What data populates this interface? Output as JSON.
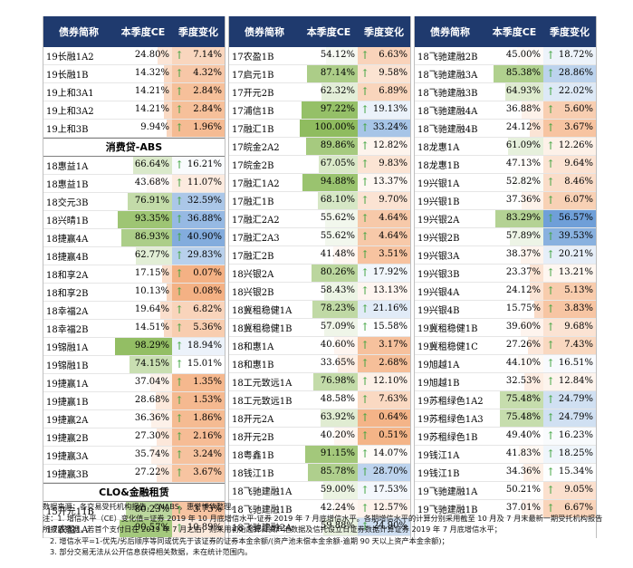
{
  "headers": {
    "name": "债券简称",
    "ce": "本季度CE",
    "change": "季度变化"
  },
  "columns": [
    {
      "rows": [
        {
          "kind": "data",
          "name": "19长融1A2",
          "ce": "24.80%",
          "change": "7.14%"
        },
        {
          "kind": "data",
          "name": "19长融1B",
          "ce": "14.32%",
          "change": "4.32%"
        },
        {
          "kind": "data",
          "name": "19上和3A1",
          "ce": "14.21%",
          "change": "2.84%"
        },
        {
          "kind": "data",
          "name": "19上和3A2",
          "ce": "14.21%",
          "change": "2.84%"
        },
        {
          "kind": "data",
          "name": "19上和3B",
          "ce": "9.94%",
          "change": "1.96%"
        },
        {
          "kind": "section",
          "name": "消费贷-ABS"
        },
        {
          "kind": "data",
          "name": "18惠益1A",
          "ce": "66.64%",
          "change": "16.21%"
        },
        {
          "kind": "data",
          "name": "18惠益1B",
          "ce": "43.68%",
          "change": "11.07%"
        },
        {
          "kind": "data",
          "name": "18交元3B",
          "ce": "76.91%",
          "change": "32.59%"
        },
        {
          "kind": "data",
          "name": "18兴晴1B",
          "ce": "93.35%",
          "change": "36.88%"
        },
        {
          "kind": "data",
          "name": "18捷赢4A",
          "ce": "86.93%",
          "change": "40.90%"
        },
        {
          "kind": "data",
          "name": "18捷赢4B",
          "ce": "62.77%",
          "change": "29.83%"
        },
        {
          "kind": "data",
          "name": "18和享2A",
          "ce": "17.15%",
          "change": "0.07%"
        },
        {
          "kind": "data",
          "name": "18和享2B",
          "ce": "10.13%",
          "change": "0.08%"
        },
        {
          "kind": "data",
          "name": "18幸福2A",
          "ce": "19.64%",
          "change": "6.82%"
        },
        {
          "kind": "data",
          "name": "18幸福2B",
          "ce": "14.51%",
          "change": "5.36%"
        },
        {
          "kind": "data",
          "name": "19锦融1A",
          "ce": "98.29%",
          "change": "18.94%"
        },
        {
          "kind": "data",
          "name": "19锦融1B",
          "ce": "74.15%",
          "change": "15.01%"
        },
        {
          "kind": "data",
          "name": "19捷赢1A",
          "ce": "37.04%",
          "change": "1.35%"
        },
        {
          "kind": "data",
          "name": "19捷赢1B",
          "ce": "28.68%",
          "change": "1.53%"
        },
        {
          "kind": "data",
          "name": "19捷赢2A",
          "ce": "36.36%",
          "change": "1.86%"
        },
        {
          "kind": "data",
          "name": "19捷赢2B",
          "ce": "27.30%",
          "change": "2.16%"
        },
        {
          "kind": "data",
          "name": "19捷赢3A",
          "ce": "35.74%",
          "change": "3.24%"
        },
        {
          "kind": "data",
          "name": "19捷赢3B",
          "ce": "27.22%",
          "change": "3.67%"
        },
        {
          "kind": "section",
          "name": "CLO&金融租赁"
        },
        {
          "kind": "data",
          "name": "15开元11B",
          "ce": "80.23%",
          "change": "3.73%"
        },
        {
          "kind": "data",
          "name": "17农盈1A",
          "ce": "90.57%",
          "change": "10.89%"
        }
      ]
    },
    {
      "rows": [
        {
          "kind": "data",
          "name": "17农盈1B",
          "ce": "54.12%",
          "change": "6.63%"
        },
        {
          "kind": "data",
          "name": "17启元1B",
          "ce": "87.14%",
          "change": "9.58%"
        },
        {
          "kind": "data",
          "name": "17开元2B",
          "ce": "62.32%",
          "change": "6.89%"
        },
        {
          "kind": "data",
          "name": "17浦信1B",
          "ce": "97.22%",
          "change": "19.13%"
        },
        {
          "kind": "data",
          "name": "17融汇1B",
          "ce": "100.00%",
          "change": "33.24%"
        },
        {
          "kind": "data",
          "name": "17皖金2A2",
          "ce": "89.86%",
          "change": "12.82%"
        },
        {
          "kind": "data",
          "name": "17皖金2B",
          "ce": "67.05%",
          "change": "9.83%"
        },
        {
          "kind": "data",
          "name": "17融汇1A2",
          "ce": "94.88%",
          "change": "13.37%"
        },
        {
          "kind": "data",
          "name": "17融汇1B",
          "ce": "68.10%",
          "change": "9.70%"
        },
        {
          "kind": "data",
          "name": "17融汇2A2",
          "ce": "55.62%",
          "change": "4.64%"
        },
        {
          "kind": "data",
          "name": "17融汇2A3",
          "ce": "55.62%",
          "change": "4.64%"
        },
        {
          "kind": "data",
          "name": "17融汇2B",
          "ce": "41.48%",
          "change": "3.51%"
        },
        {
          "kind": "data",
          "name": "18兴银2A",
          "ce": "80.26%",
          "change": "17.92%"
        },
        {
          "kind": "data",
          "name": "18兴银2B",
          "ce": "58.43%",
          "change": "13.13%"
        },
        {
          "kind": "data",
          "name": "18冀租稳健1A",
          "ce": "78.23%",
          "change": "21.16%"
        },
        {
          "kind": "data",
          "name": "18冀租稳健1B",
          "ce": "57.09%",
          "change": "15.58%"
        },
        {
          "kind": "data",
          "name": "18和惠1A",
          "ce": "40.60%",
          "change": "3.17%"
        },
        {
          "kind": "data",
          "name": "18和惠1B",
          "ce": "33.65%",
          "change": "2.68%"
        },
        {
          "kind": "data",
          "name": "18工元致远1A",
          "ce": "76.98%",
          "change": "12.10%"
        },
        {
          "kind": "data",
          "name": "18工元致远1B",
          "ce": "48.58%",
          "change": "7.63%"
        },
        {
          "kind": "data",
          "name": "18开元2A",
          "ce": "63.92%",
          "change": "0.64%"
        },
        {
          "kind": "data",
          "name": "18开元2B",
          "ce": "40.20%",
          "change": "0.51%"
        },
        {
          "kind": "data",
          "name": "18粤鑫1B",
          "ce": "91.15%",
          "change": "14.07%"
        },
        {
          "kind": "data",
          "name": "18钱江1B",
          "ce": "85.78%",
          "change": "28.70%"
        },
        {
          "kind": "data",
          "name": "18飞驰建融1A",
          "ce": "59.00%",
          "change": "17.53%"
        },
        {
          "kind": "data",
          "name": "18飞驰建融1B",
          "ce": "42.24%",
          "change": "12.57%"
        },
        {
          "kind": "data",
          "name": "18飞驰建融2A",
          "ce": "59.88%",
          "change": "24.90%"
        }
      ]
    },
    {
      "rows": [
        {
          "kind": "data",
          "name": "18飞驰建融2B",
          "ce": "45.00%",
          "change": "18.72%"
        },
        {
          "kind": "data",
          "name": "18飞驰建融3A",
          "ce": "85.38%",
          "change": "28.86%"
        },
        {
          "kind": "data",
          "name": "18飞驰建融3B",
          "ce": "64.93%",
          "change": "22.02%"
        },
        {
          "kind": "data",
          "name": "18飞驰建融4A",
          "ce": "36.88%",
          "change": "5.60%"
        },
        {
          "kind": "data",
          "name": "18飞驰建融4B",
          "ce": "24.12%",
          "change": "3.67%"
        },
        {
          "kind": "data",
          "name": "18龙惠1A",
          "ce": "61.09%",
          "change": "12.26%"
        },
        {
          "kind": "data",
          "name": "18龙惠1B",
          "ce": "47.13%",
          "change": "9.64%"
        },
        {
          "kind": "data",
          "name": "19兴银1A",
          "ce": "52.82%",
          "change": "8.46%"
        },
        {
          "kind": "data",
          "name": "19兴银1B",
          "ce": "37.36%",
          "change": "6.07%"
        },
        {
          "kind": "data",
          "name": "19兴银2A",
          "ce": "83.29%",
          "change": "56.57%"
        },
        {
          "kind": "data",
          "name": "19兴银2B",
          "ce": "57.89%",
          "change": "39.53%"
        },
        {
          "kind": "data",
          "name": "19兴银3A",
          "ce": "38.37%",
          "change": "20.21%"
        },
        {
          "kind": "data",
          "name": "19兴银3B",
          "ce": "23.37%",
          "change": "13.21%"
        },
        {
          "kind": "data",
          "name": "19兴银4A",
          "ce": "24.12%",
          "change": "5.13%"
        },
        {
          "kind": "data",
          "name": "19兴银4B",
          "ce": "15.75%",
          "change": "3.83%"
        },
        {
          "kind": "data",
          "name": "19冀租稳健1B",
          "ce": "39.60%",
          "change": "9.68%"
        },
        {
          "kind": "data",
          "name": "19冀租稳健1C",
          "ce": "27.26%",
          "change": "7.43%"
        },
        {
          "kind": "data",
          "name": "19旭越1A",
          "ce": "44.10%",
          "change": "16.51%"
        },
        {
          "kind": "data",
          "name": "19旭越1B",
          "ce": "32.53%",
          "change": "12.84%"
        },
        {
          "kind": "data",
          "name": "19苏租绿色1A2",
          "ce": "75.48%",
          "change": "24.79%"
        },
        {
          "kind": "data",
          "name": "19苏租绿色1A3",
          "ce": "75.48%",
          "change": "24.79%"
        },
        {
          "kind": "data",
          "name": "19苏租绿色1B",
          "ce": "49.40%",
          "change": "16.23%"
        },
        {
          "kind": "data",
          "name": "19钱江1A",
          "ce": "41.83%",
          "change": "18.25%"
        },
        {
          "kind": "data",
          "name": "19钱江1B",
          "ce": "34.36%",
          "change": "15.34%"
        },
        {
          "kind": "data",
          "name": "19飞驰建融1A",
          "ce": "50.21%",
          "change": "9.05%"
        },
        {
          "kind": "data",
          "name": "19飞驰建融1B",
          "ce": "37.01%",
          "change": "6.67%"
        }
      ]
    }
  ],
  "notes": [
    "数据来源：各交易受托机构报告，CNABS，惠誉博华整理。",
    "注：1. 增信水平（CE）变化值=证券 2019 年 10 月底增信水平-证券 2019 年 7 月底增信水平。各期增信水平的计算分别采用截至 10 月及 7 月末最新一期受托机构报告所披露数据，若首个支付日在 2019 年 7 月之后，则采用初始起算日资产池数据及信托设立日证券数据计算证券 2019 年 7 月底增信水平；",
    "2. 增信水平=1-优先/劣后顺序等同或优先于该证券的证券本金余额/(资产池未偿本金余额-逾期 90 天以上资产本金余额)；",
    "3. 部分交易无法从公开信息获得相关数据，未在统计范围内。"
  ],
  "colors": {
    "header_bg": "#1f3a6e",
    "arrow": "#3da33d"
  }
}
